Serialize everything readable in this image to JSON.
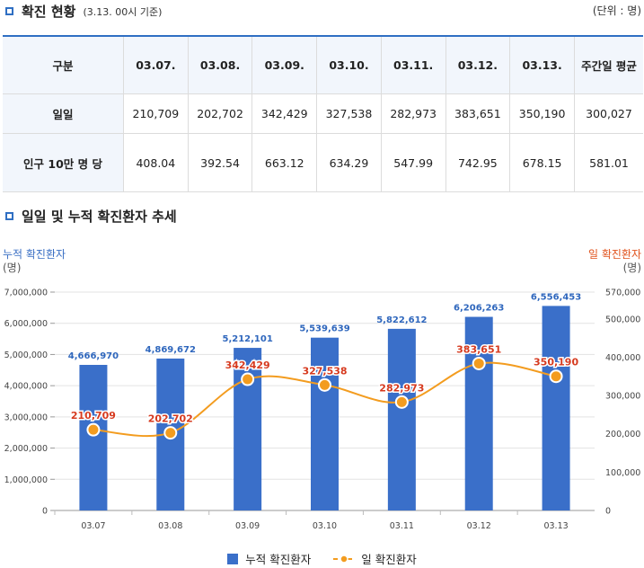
{
  "section1": {
    "title": "확진 현황",
    "subtitle": "(3.13. 00시 기준)",
    "unit": "(단위 : 명)"
  },
  "table": {
    "header": [
      "구분",
      "03.07.",
      "03.08.",
      "03.09.",
      "03.10.",
      "03.11.",
      "03.12.",
      "03.13.",
      "주간일 평균"
    ],
    "rows": [
      {
        "label": "일일",
        "values": [
          "210,709",
          "202,702",
          "342,429",
          "327,538",
          "282,973",
          "383,651",
          "350,190",
          "300,027"
        ]
      },
      {
        "label": "인구 10만 명 당",
        "values": [
          "408.04",
          "392.54",
          "663.12",
          "634.29",
          "547.99",
          "742.95",
          "678.15",
          "581.01"
        ]
      }
    ]
  },
  "section2": {
    "title": "일일 및 누적 확진환자 추세"
  },
  "chart_data": {
    "type": "bar",
    "categories": [
      "03.07",
      "03.08",
      "03.09",
      "03.10",
      "03.11",
      "03.12",
      "03.13"
    ],
    "series": [
      {
        "name": "누적 확진환자",
        "type": "bar",
        "axis": "left",
        "color": "#3a6fc9",
        "values": [
          4666970,
          4869672,
          5212101,
          5539639,
          5822612,
          6206263,
          6556453
        ]
      },
      {
        "name": "일 확진환자",
        "type": "line",
        "axis": "right",
        "color": "#f39c1f",
        "values": [
          210709,
          202702,
          342429,
          327538,
          282973,
          383651,
          350190
        ]
      }
    ],
    "ylabel_left": "누적 확진환자",
    "ylabel_left_unit": "(명)",
    "ylabel_right": "일 확진환자",
    "ylabel_right_unit": "(명)",
    "ylim_left": [
      0,
      7000000
    ],
    "ylim_right": [
      0,
      570000
    ],
    "yticks_left": [
      "7,000,000",
      "6,000,000",
      "5,000,000",
      "4,000,000",
      "3,000,000",
      "2,000,000",
      "1,000,000",
      "0"
    ],
    "yticks_right": [
      "570,000",
      "500,000",
      "400,000",
      "300,000",
      "200,000",
      "100,000",
      "0"
    ],
    "bar_labels": [
      "4,666,970",
      "4,869,672",
      "5,212,101",
      "5,539,639",
      "5,822,612",
      "6,206,263",
      "6,556,453"
    ],
    "line_labels": [
      "210,709",
      "202,702",
      "342,429",
      "327,538",
      "282,973",
      "383,651",
      "350,190"
    ],
    "legend": [
      "누적 확진환자",
      "일 확진환자"
    ],
    "legend_position": "bottom",
    "grid": true
  }
}
